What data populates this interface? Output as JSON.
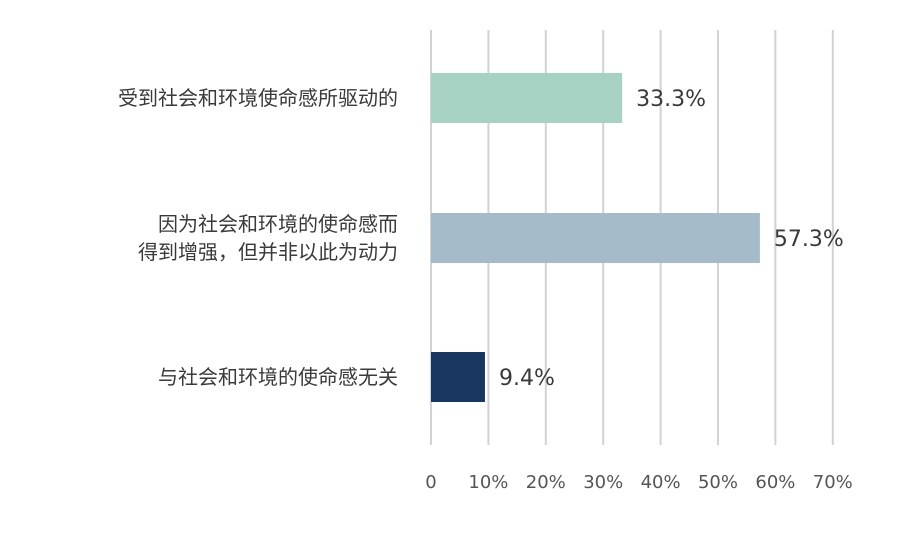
{
  "chart_data": {
    "type": "bar",
    "orientation": "horizontal",
    "categories": [
      [
        "受到社会和环境使命感所驱动的"
      ],
      [
        "因为社会和环境的使命感而",
        "得到增强，但并非以此为动力"
      ],
      [
        "与社会和环境的使命感无关"
      ]
    ],
    "values": [
      33.3,
      57.3,
      9.4
    ],
    "data_labels": [
      "33.3%",
      "57.3%",
      "9.4%"
    ],
    "bar_colors": [
      "#a6d1c3",
      "#a6bbc9",
      "#193660"
    ],
    "x_ticks": [
      "0",
      "10%",
      "20%",
      "30%",
      "40%",
      "50%",
      "60%",
      "70%"
    ],
    "xlim": [
      0,
      70
    ],
    "grid": true,
    "title": "",
    "xlabel": "",
    "ylabel": ""
  }
}
